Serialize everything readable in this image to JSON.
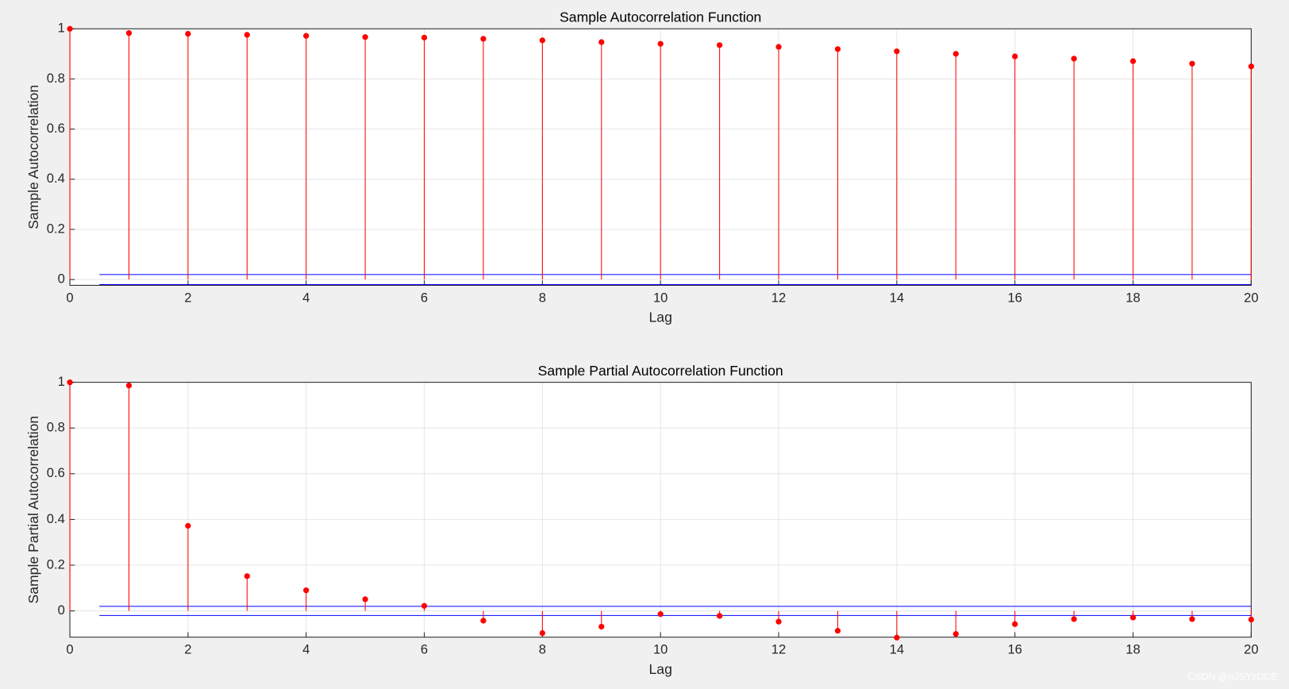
{
  "chart_data": [
    {
      "type": "stem",
      "title": "Sample Autocorrelation Function",
      "xlabel": "Lag",
      "ylabel": "Sample Autocorrelation",
      "x": [
        0,
        1,
        2,
        3,
        4,
        5,
        6,
        7,
        8,
        9,
        10,
        11,
        12,
        13,
        14,
        15,
        16,
        17,
        18,
        19,
        20
      ],
      "values": [
        1,
        0.983,
        0.98,
        0.976,
        0.972,
        0.967,
        0.965,
        0.96,
        0.954,
        0.947,
        0.94,
        0.935,
        0.928,
        0.919,
        0.91,
        0.9,
        0.89,
        0.881,
        0.871,
        0.861,
        0.85
      ],
      "color": "#ff0000",
      "bounds": [
        0.02,
        -0.02
      ],
      "bounds_xlim": [
        0.5,
        20
      ],
      "bounds_color": "#0000ff",
      "xlim": [
        0,
        20
      ],
      "ylim": [
        -0.023,
        1
      ],
      "xticks": [
        0,
        2,
        4,
        6,
        8,
        10,
        12,
        14,
        16,
        18,
        20
      ],
      "yticks": [
        0,
        0.2,
        0.4,
        0.6,
        0.8,
        1
      ],
      "grid": true
    },
    {
      "type": "stem",
      "title": "Sample Partial Autocorrelation Function",
      "xlabel": "Lag",
      "ylabel": "Sample Partial Autocorrelation",
      "x": [
        0,
        1,
        2,
        3,
        4,
        5,
        6,
        7,
        8,
        9,
        10,
        11,
        12,
        13,
        14,
        15,
        16,
        17,
        18,
        19,
        20
      ],
      "values": [
        1,
        0.986,
        0.372,
        0.152,
        0.09,
        0.051,
        0.022,
        -0.043,
        -0.097,
        -0.069,
        -0.014,
        -0.022,
        -0.047,
        -0.087,
        -0.117,
        -0.101,
        -0.058,
        -0.036,
        -0.029,
        -0.036,
        -0.038
      ],
      "color": "#ff0000",
      "bounds": [
        0.02,
        -0.02
      ],
      "bounds_xlim": [
        0.5,
        20
      ],
      "bounds_color": "#0000ff",
      "xlim": [
        0,
        20
      ],
      "ylim": [
        -0.115,
        1
      ],
      "xticks": [
        0,
        2,
        4,
        6,
        8,
        10,
        12,
        14,
        16,
        18,
        20
      ],
      "yticks": [
        0,
        0.2,
        0.4,
        0.6,
        0.8,
        1
      ],
      "grid": true
    }
  ],
  "watermark": "CSDN @nJSYzDCE"
}
